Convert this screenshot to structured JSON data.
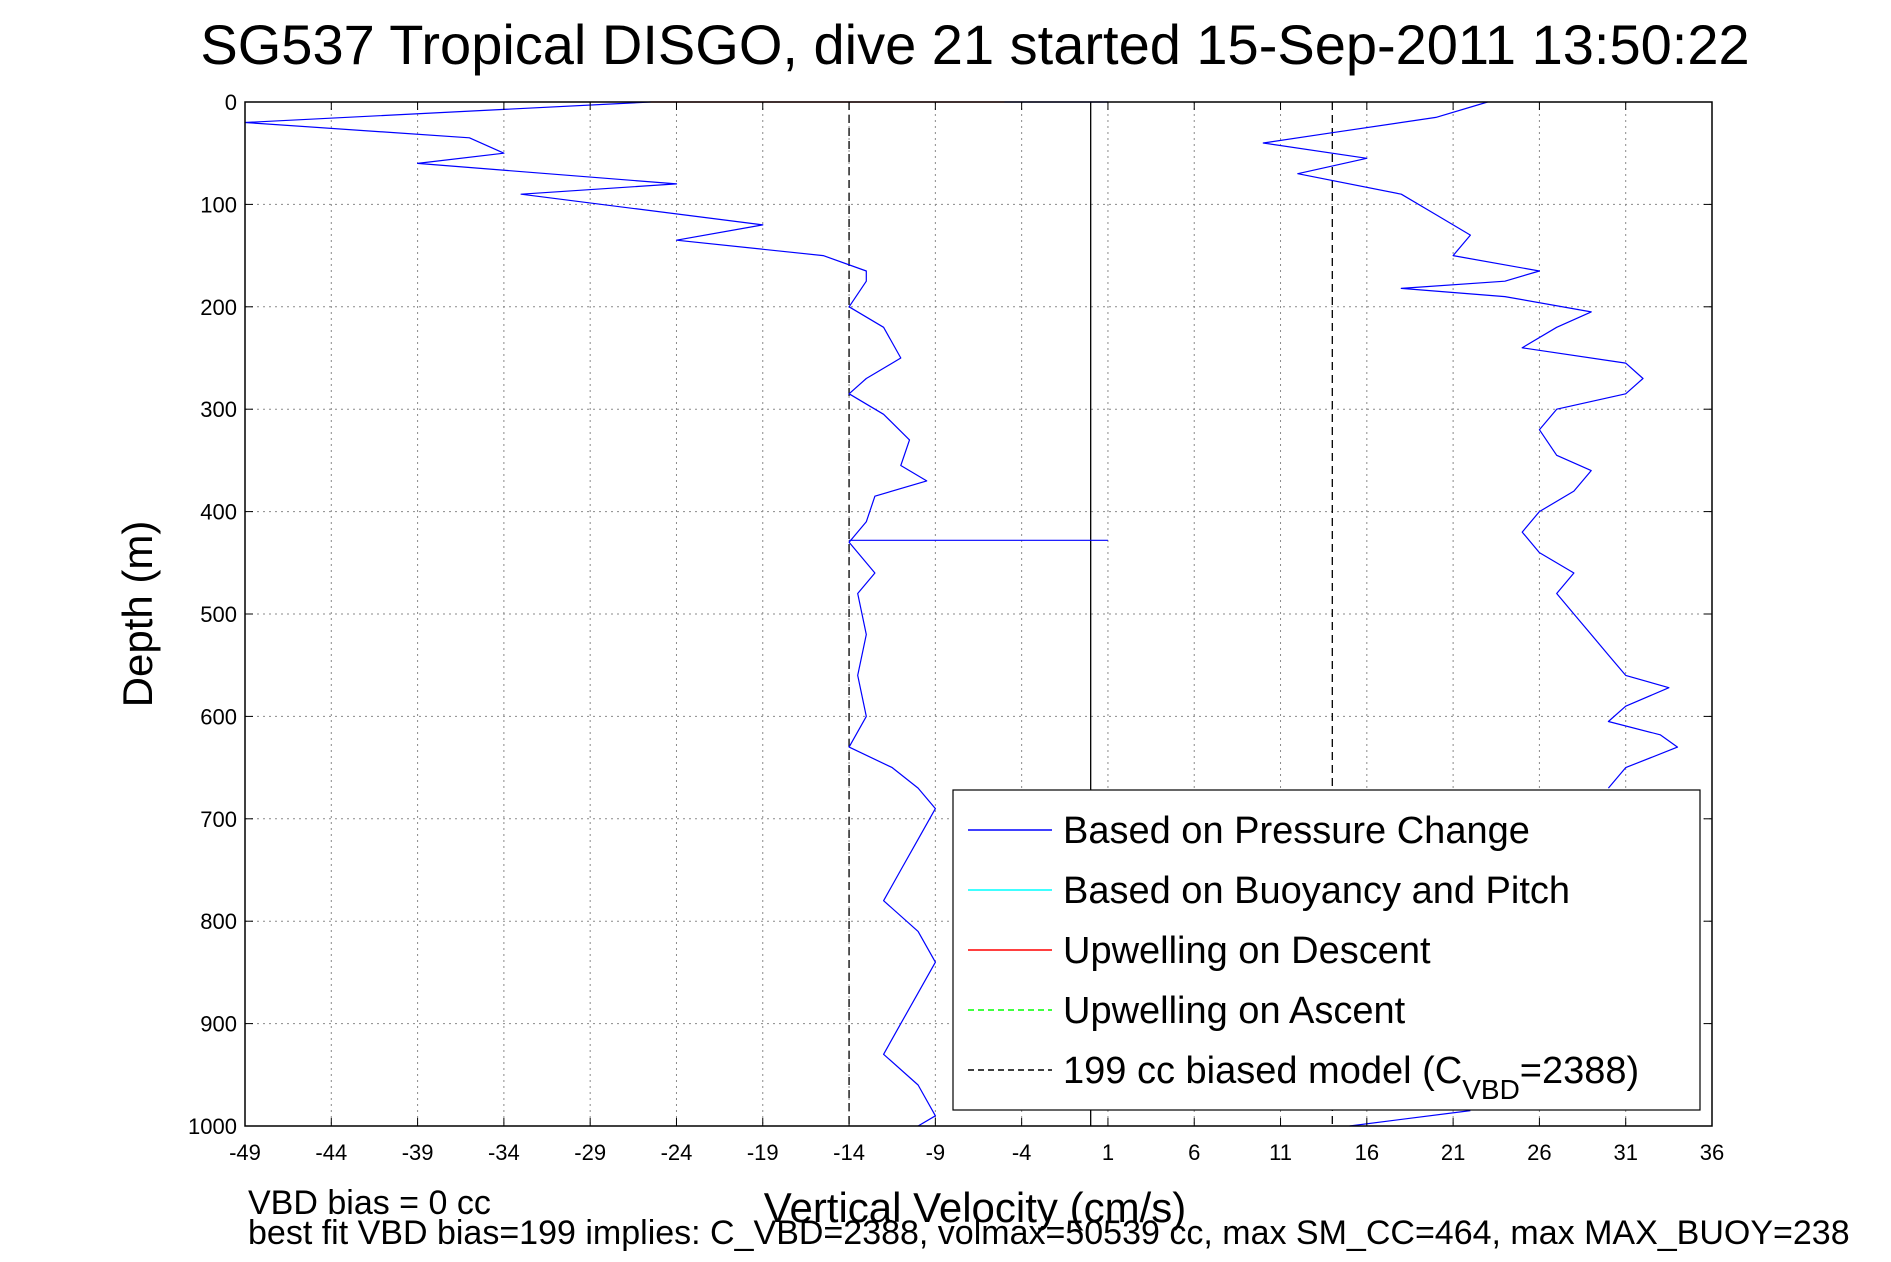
{
  "chart_data": {
    "type": "line",
    "title": "SG537 Tropical DISGO, dive 21 started 15-Sep-2011 13:50:22",
    "xlabel": "Vertical Velocity (cm/s)",
    "ylabel": "Depth (m)",
    "xlim": [
      -49,
      36
    ],
    "ylim": [
      0,
      1000
    ],
    "y_reversed": true,
    "grid": true,
    "x_ticks": [
      "-49",
      "-44",
      "-39",
      "-34",
      "-29",
      "-24",
      "-19",
      "-14",
      "-9",
      "-4",
      "1",
      "6",
      "11",
      "16",
      "21",
      "26",
      "31",
      "36"
    ],
    "y_ticks": [
      "0",
      "100",
      "200",
      "300",
      "400",
      "500",
      "600",
      "700",
      "800",
      "900",
      "1000"
    ],
    "legend_position": "bottom-right",
    "legend": [
      {
        "label": "Based on Pressure Change",
        "color": "#0000ff",
        "style": "solid"
      },
      {
        "label": "Based on Buoyancy and Pitch",
        "color": "#00ffff",
        "style": "solid"
      },
      {
        "label": "Upwelling on Descent",
        "color": "#ff0000",
        "style": "solid"
      },
      {
        "label": "Upwelling on Ascent",
        "color": "#00ff00",
        "style": "dashed"
      },
      {
        "label": "199 cc biased model (C",
        "sub": "VBD",
        "suffix": "=2388)",
        "color": "#000000",
        "style": "dashed"
      }
    ],
    "series": [
      {
        "color": "#0000ff",
        "points": [
          [
            -25.5,
            0
          ],
          [
            -49,
            20
          ],
          [
            -36,
            35
          ],
          [
            -34,
            50
          ],
          [
            -39,
            60
          ],
          [
            -24,
            80
          ],
          [
            -33,
            90
          ],
          [
            -19,
            120
          ],
          [
            -24,
            135
          ],
          [
            -15.5,
            150
          ],
          [
            -13,
            165
          ],
          [
            -13,
            175
          ],
          [
            -14,
            200
          ],
          [
            -12,
            220
          ],
          [
            -11,
            250
          ],
          [
            -13,
            270
          ],
          [
            -14,
            285
          ],
          [
            -12,
            305
          ],
          [
            -10.5,
            330
          ],
          [
            -11,
            355
          ],
          [
            -9.5,
            370
          ],
          [
            -12.5,
            385
          ],
          [
            -13,
            410
          ],
          [
            -14,
            430
          ],
          [
            -12.5,
            460
          ],
          [
            -13.5,
            480
          ],
          [
            -13,
            520
          ],
          [
            -13.5,
            560
          ],
          [
            -13,
            600
          ],
          [
            -14,
            630
          ],
          [
            -11.5,
            650
          ],
          [
            -10,
            670
          ],
          [
            -9,
            690
          ],
          [
            -10,
            720
          ],
          [
            -11,
            750
          ],
          [
            -12,
            780
          ],
          [
            -10,
            810
          ],
          [
            -9,
            840
          ],
          [
            -10,
            870
          ],
          [
            -11,
            900
          ],
          [
            -12,
            930
          ],
          [
            -10,
            960
          ],
          [
            -9,
            990
          ],
          [
            -10,
            1000
          ]
        ]
      },
      {
        "color": "#0000ff",
        "points": [
          [
            23,
            0
          ],
          [
            20,
            15
          ],
          [
            14,
            30
          ],
          [
            10,
            40
          ],
          [
            16,
            55
          ],
          [
            12,
            70
          ],
          [
            18,
            90
          ],
          [
            20,
            110
          ],
          [
            22,
            130
          ],
          [
            21,
            150
          ],
          [
            26,
            165
          ],
          [
            24,
            175
          ],
          [
            18,
            182
          ],
          [
            24,
            190
          ],
          [
            29,
            205
          ],
          [
            27,
            220
          ],
          [
            25,
            240
          ],
          [
            31,
            255
          ],
          [
            32,
            270
          ],
          [
            31,
            285
          ],
          [
            27,
            300
          ],
          [
            26,
            320
          ],
          [
            27,
            345
          ],
          [
            29,
            360
          ],
          [
            28,
            380
          ],
          [
            26,
            400
          ],
          [
            25,
            420
          ],
          [
            26,
            440
          ],
          [
            28,
            460
          ],
          [
            27,
            480
          ],
          [
            28,
            500
          ],
          [
            29,
            520
          ],
          [
            30,
            540
          ],
          [
            31,
            560
          ],
          [
            33.5,
            572
          ],
          [
            31,
            590
          ],
          [
            30,
            605
          ],
          [
            33,
            618
          ],
          [
            34,
            630
          ],
          [
            31,
            650
          ],
          [
            30,
            670
          ]
        ]
      },
      {
        "color": "#0000ff",
        "points": [
          [
            15,
            1000
          ],
          [
            22,
            985
          ]
        ]
      },
      {
        "color": "#ff0000",
        "points": [
          [
            -25.5,
            0
          ],
          [
            -5,
            0
          ]
        ]
      },
      {
        "color": "#0000ff",
        "points": [
          [
            -5,
            0
          ],
          [
            1,
            0
          ]
        ]
      },
      {
        "color": "#0000ff",
        "points": [
          [
            -14,
            428
          ],
          [
            1,
            428
          ]
        ]
      }
    ],
    "reference_lines": [
      {
        "x": -14,
        "color": "#000000",
        "style": "dashed"
      },
      {
        "x": 0,
        "color": "#000000",
        "style": "solid"
      },
      {
        "x": 14,
        "color": "#000000",
        "style": "dashed"
      }
    ]
  },
  "footnotes": {
    "line1": "VBD bias = 0 cc",
    "line2": "best fit VBD bias=199 implies: C_VBD=2388, volmax=50539 cc, max SM_CC=464, max MAX_BUOY=238"
  }
}
